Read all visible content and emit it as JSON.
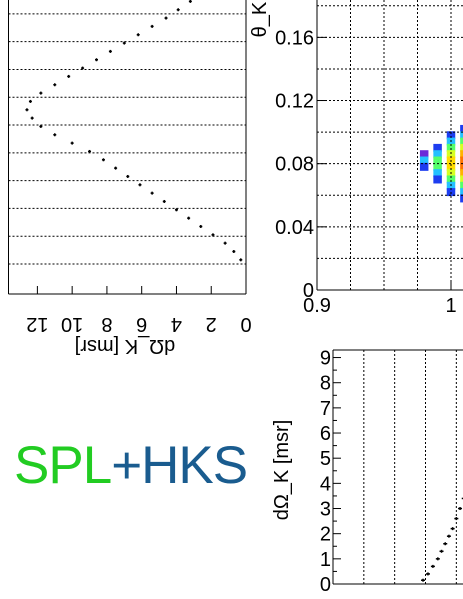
{
  "logo": {
    "part1": "SPL",
    "plus": "+",
    "part2": "HKS",
    "color1": "#22cc22",
    "color2": "#1a5c8f",
    "plus_color": "#1a5c8f"
  },
  "colors": {
    "marker": "#000000",
    "grid": "#000000"
  },
  "chart_data": [
    {
      "id": "theta-projection",
      "type": "scatter",
      "orientation": "rotated",
      "xlabel": "dΩ_K [msr]",
      "x_ticks": [
        "12",
        "10",
        "8",
        "6",
        "4",
        "2",
        "0"
      ],
      "xlim": [
        0,
        13
      ],
      "ylim": [
        0,
        0.19
      ],
      "series": [
        {
          "values": [
            [
              0.3,
              0.003
            ],
            [
              0.7,
              0.009
            ],
            [
              1.2,
              0.015
            ],
            [
              1.9,
              0.021
            ],
            [
              2.6,
              0.027
            ],
            [
              3.3,
              0.033
            ],
            [
              4.0,
              0.039
            ],
            [
              4.7,
              0.045
            ],
            [
              5.4,
              0.051
            ],
            [
              6.1,
              0.057
            ],
            [
              6.8,
              0.063
            ],
            [
              7.5,
              0.069
            ],
            [
              8.2,
              0.075
            ],
            [
              9.0,
              0.081
            ],
            [
              10.0,
              0.087
            ],
            [
              11.0,
              0.093
            ],
            [
              11.8,
              0.099
            ],
            [
              12.3,
              0.105
            ],
            [
              12.6,
              0.111
            ],
            [
              12.4,
              0.117
            ],
            [
              11.8,
              0.123
            ],
            [
              11.0,
              0.129
            ],
            [
              10.2,
              0.135
            ],
            [
              9.4,
              0.141
            ],
            [
              8.6,
              0.147
            ],
            [
              7.8,
              0.153
            ],
            [
              7.0,
              0.159
            ],
            [
              6.2,
              0.165
            ],
            [
              5.4,
              0.171
            ],
            [
              4.6,
              0.177
            ],
            [
              3.9,
              0.183
            ],
            [
              3.2,
              0.189
            ]
          ]
        }
      ]
    },
    {
      "id": "theta-vs-momentum",
      "type": "heatmap",
      "ylabel": "θ_K [",
      "y_ticks": [
        "0.16",
        "0.12",
        "0.08",
        "0.04",
        "0"
      ],
      "x_ticks": [
        "0.9",
        "1"
      ],
      "xlim": [
        0.9,
        1.05
      ],
      "ylim": [
        0,
        0.19
      ],
      "cells": [
        {
          "x": 1.01,
          "y": 0.102,
          "c": "#1d3df0"
        },
        {
          "x": 1.01,
          "y": 0.098,
          "c": "#24c0ff"
        },
        {
          "x": 1.01,
          "y": 0.094,
          "c": "#55ff6b"
        },
        {
          "x": 1.01,
          "y": 0.09,
          "c": "#d7ff22"
        },
        {
          "x": 1.01,
          "y": 0.086,
          "c": "#ffb300"
        },
        {
          "x": 1.01,
          "y": 0.082,
          "c": "#ff7400"
        },
        {
          "x": 1.01,
          "y": 0.078,
          "c": "#ff7400"
        },
        {
          "x": 1.01,
          "y": 0.074,
          "c": "#ffb300"
        },
        {
          "x": 1.01,
          "y": 0.07,
          "c": "#d7ff22"
        },
        {
          "x": 1.01,
          "y": 0.066,
          "c": "#55ff6b"
        },
        {
          "x": 1.01,
          "y": 0.062,
          "c": "#24c0ff"
        },
        {
          "x": 1.01,
          "y": 0.058,
          "c": "#1d3df0"
        },
        {
          "x": 1.0,
          "y": 0.098,
          "c": "#1d3df0"
        },
        {
          "x": 1.0,
          "y": 0.094,
          "c": "#24c0ff"
        },
        {
          "x": 1.0,
          "y": 0.09,
          "c": "#55ff6b"
        },
        {
          "x": 1.0,
          "y": 0.086,
          "c": "#d7ff22"
        },
        {
          "x": 1.0,
          "y": 0.082,
          "c": "#ffdd00"
        },
        {
          "x": 1.0,
          "y": 0.078,
          "c": "#ffdd00"
        },
        {
          "x": 1.0,
          "y": 0.074,
          "c": "#d7ff22"
        },
        {
          "x": 1.0,
          "y": 0.07,
          "c": "#55ff6b"
        },
        {
          "x": 1.0,
          "y": 0.066,
          "c": "#24c0ff"
        },
        {
          "x": 1.0,
          "y": 0.062,
          "c": "#1d3df0"
        },
        {
          "x": 0.99,
          "y": 0.09,
          "c": "#1d3df0"
        },
        {
          "x": 0.99,
          "y": 0.086,
          "c": "#24c0ff"
        },
        {
          "x": 0.99,
          "y": 0.082,
          "c": "#55ff6b"
        },
        {
          "x": 0.99,
          "y": 0.078,
          "c": "#55ff6b"
        },
        {
          "x": 0.99,
          "y": 0.074,
          "c": "#24c0ff"
        },
        {
          "x": 0.99,
          "y": 0.07,
          "c": "#1d3df0"
        },
        {
          "x": 0.98,
          "y": 0.086,
          "c": "#6b2ad8"
        },
        {
          "x": 0.98,
          "y": 0.082,
          "c": "#24c0ff"
        },
        {
          "x": 0.98,
          "y": 0.078,
          "c": "#1d3df0"
        }
      ]
    },
    {
      "id": "momentum-projection",
      "type": "scatter",
      "ylabel": "dΩ_K [msr]",
      "y_ticks": [
        "9",
        "8",
        "7",
        "6",
        "5",
        "4",
        "3",
        "2",
        "1",
        "0"
      ],
      "xlim": [
        0.9,
        1.05
      ],
      "ylim": [
        0,
        9.3
      ],
      "series": [
        {
          "values": [
            [
              0.973,
              0.15
            ],
            [
              0.977,
              0.4
            ],
            [
              0.981,
              0.7
            ],
            [
              0.985,
              1.0
            ],
            [
              0.988,
              1.3
            ],
            [
              0.991,
              1.6
            ],
            [
              0.994,
              1.9
            ],
            [
              0.997,
              2.2
            ],
            [
              1.0,
              2.6
            ],
            [
              1.003,
              3.0
            ],
            [
              1.006,
              3.4
            ],
            [
              1.009,
              3.8
            ],
            [
              1.012,
              4.2
            ],
            [
              1.015,
              4.6
            ],
            [
              1.018,
              5.0
            ]
          ]
        }
      ]
    }
  ]
}
